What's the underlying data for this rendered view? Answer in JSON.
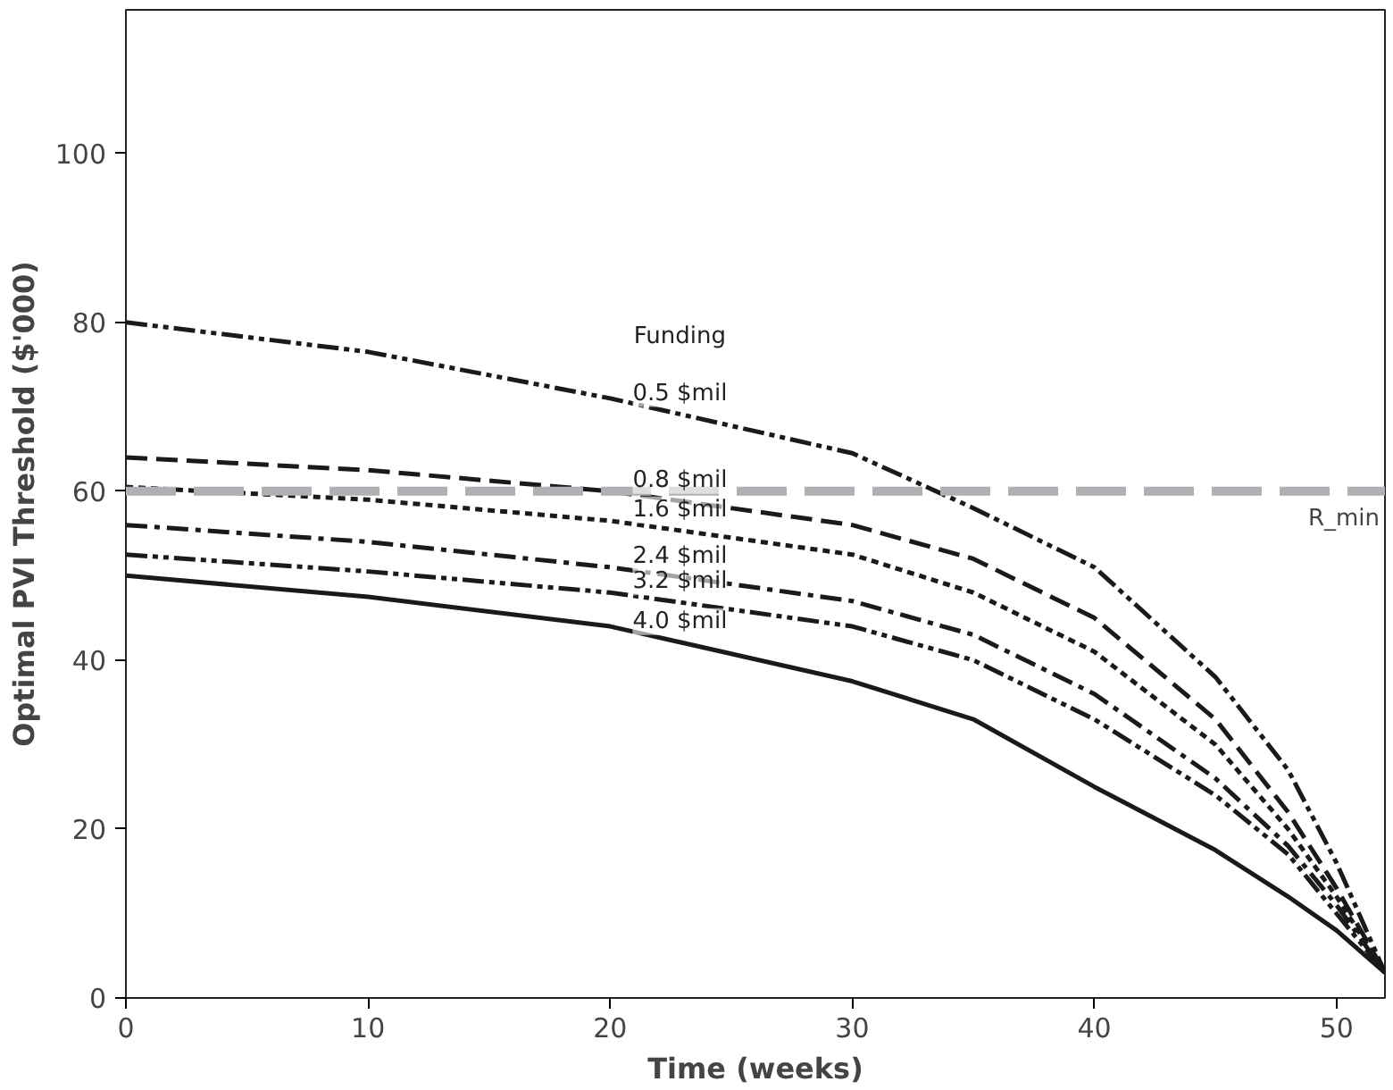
{
  "chart_data": {
    "type": "line",
    "xlabel": "Time (weeks)",
    "ylabel": "Optimal PVI Threshold ($'000)",
    "x": [
      0,
      10,
      20,
      30,
      35,
      40,
      45,
      48,
      50,
      52
    ],
    "xlim": [
      0,
      52
    ],
    "ylim": [
      0,
      117
    ],
    "xticks": [
      0,
      10,
      20,
      30,
      40,
      50
    ],
    "yticks": [
      0,
      20,
      40,
      60,
      80,
      100
    ],
    "grid": false,
    "marker": "none",
    "series": [
      {
        "name": "0.5 $mil",
        "color": "#1a1a1a",
        "line_style": "dashdotdot",
        "values": [
          80,
          76.5,
          71,
          64.5,
          58,
          51,
          38,
          27,
          16,
          3
        ]
      },
      {
        "name": "0.8 $mil",
        "color": "#1a1a1a",
        "line_style": "dashed",
        "values": [
          64,
          62.5,
          60,
          56,
          52,
          45,
          33,
          22,
          13,
          3
        ]
      },
      {
        "name": "1.6 $mil",
        "color": "#1a1a1a",
        "line_style": "dotted",
        "values": [
          60.5,
          59,
          56.5,
          52.5,
          48,
          41,
          30,
          20,
          12,
          3
        ]
      },
      {
        "name": "2.4 $mil",
        "color": "#1a1a1a",
        "line_style": "dashdot",
        "values": [
          56,
          54,
          51,
          47,
          43,
          36,
          26,
          18,
          11,
          3
        ]
      },
      {
        "name": "3.2 $mil",
        "color": "#1a1a1a",
        "line_style": "dashdotdot",
        "values": [
          52.5,
          50.5,
          48,
          44,
          40,
          33,
          24,
          17,
          10,
          3
        ]
      },
      {
        "name": "4.0 $mil",
        "color": "#1a1a1a",
        "line_style": "solid",
        "values": [
          50,
          47.5,
          44,
          37.5,
          33,
          25,
          17.5,
          12,
          8,
          3
        ]
      }
    ],
    "ref_lines": [
      {
        "axis": "y",
        "value": 60,
        "label": "R_min",
        "color": "#b0b0b4",
        "line_style": "dashed"
      }
    ],
    "annotations": [
      "Funding"
    ]
  }
}
